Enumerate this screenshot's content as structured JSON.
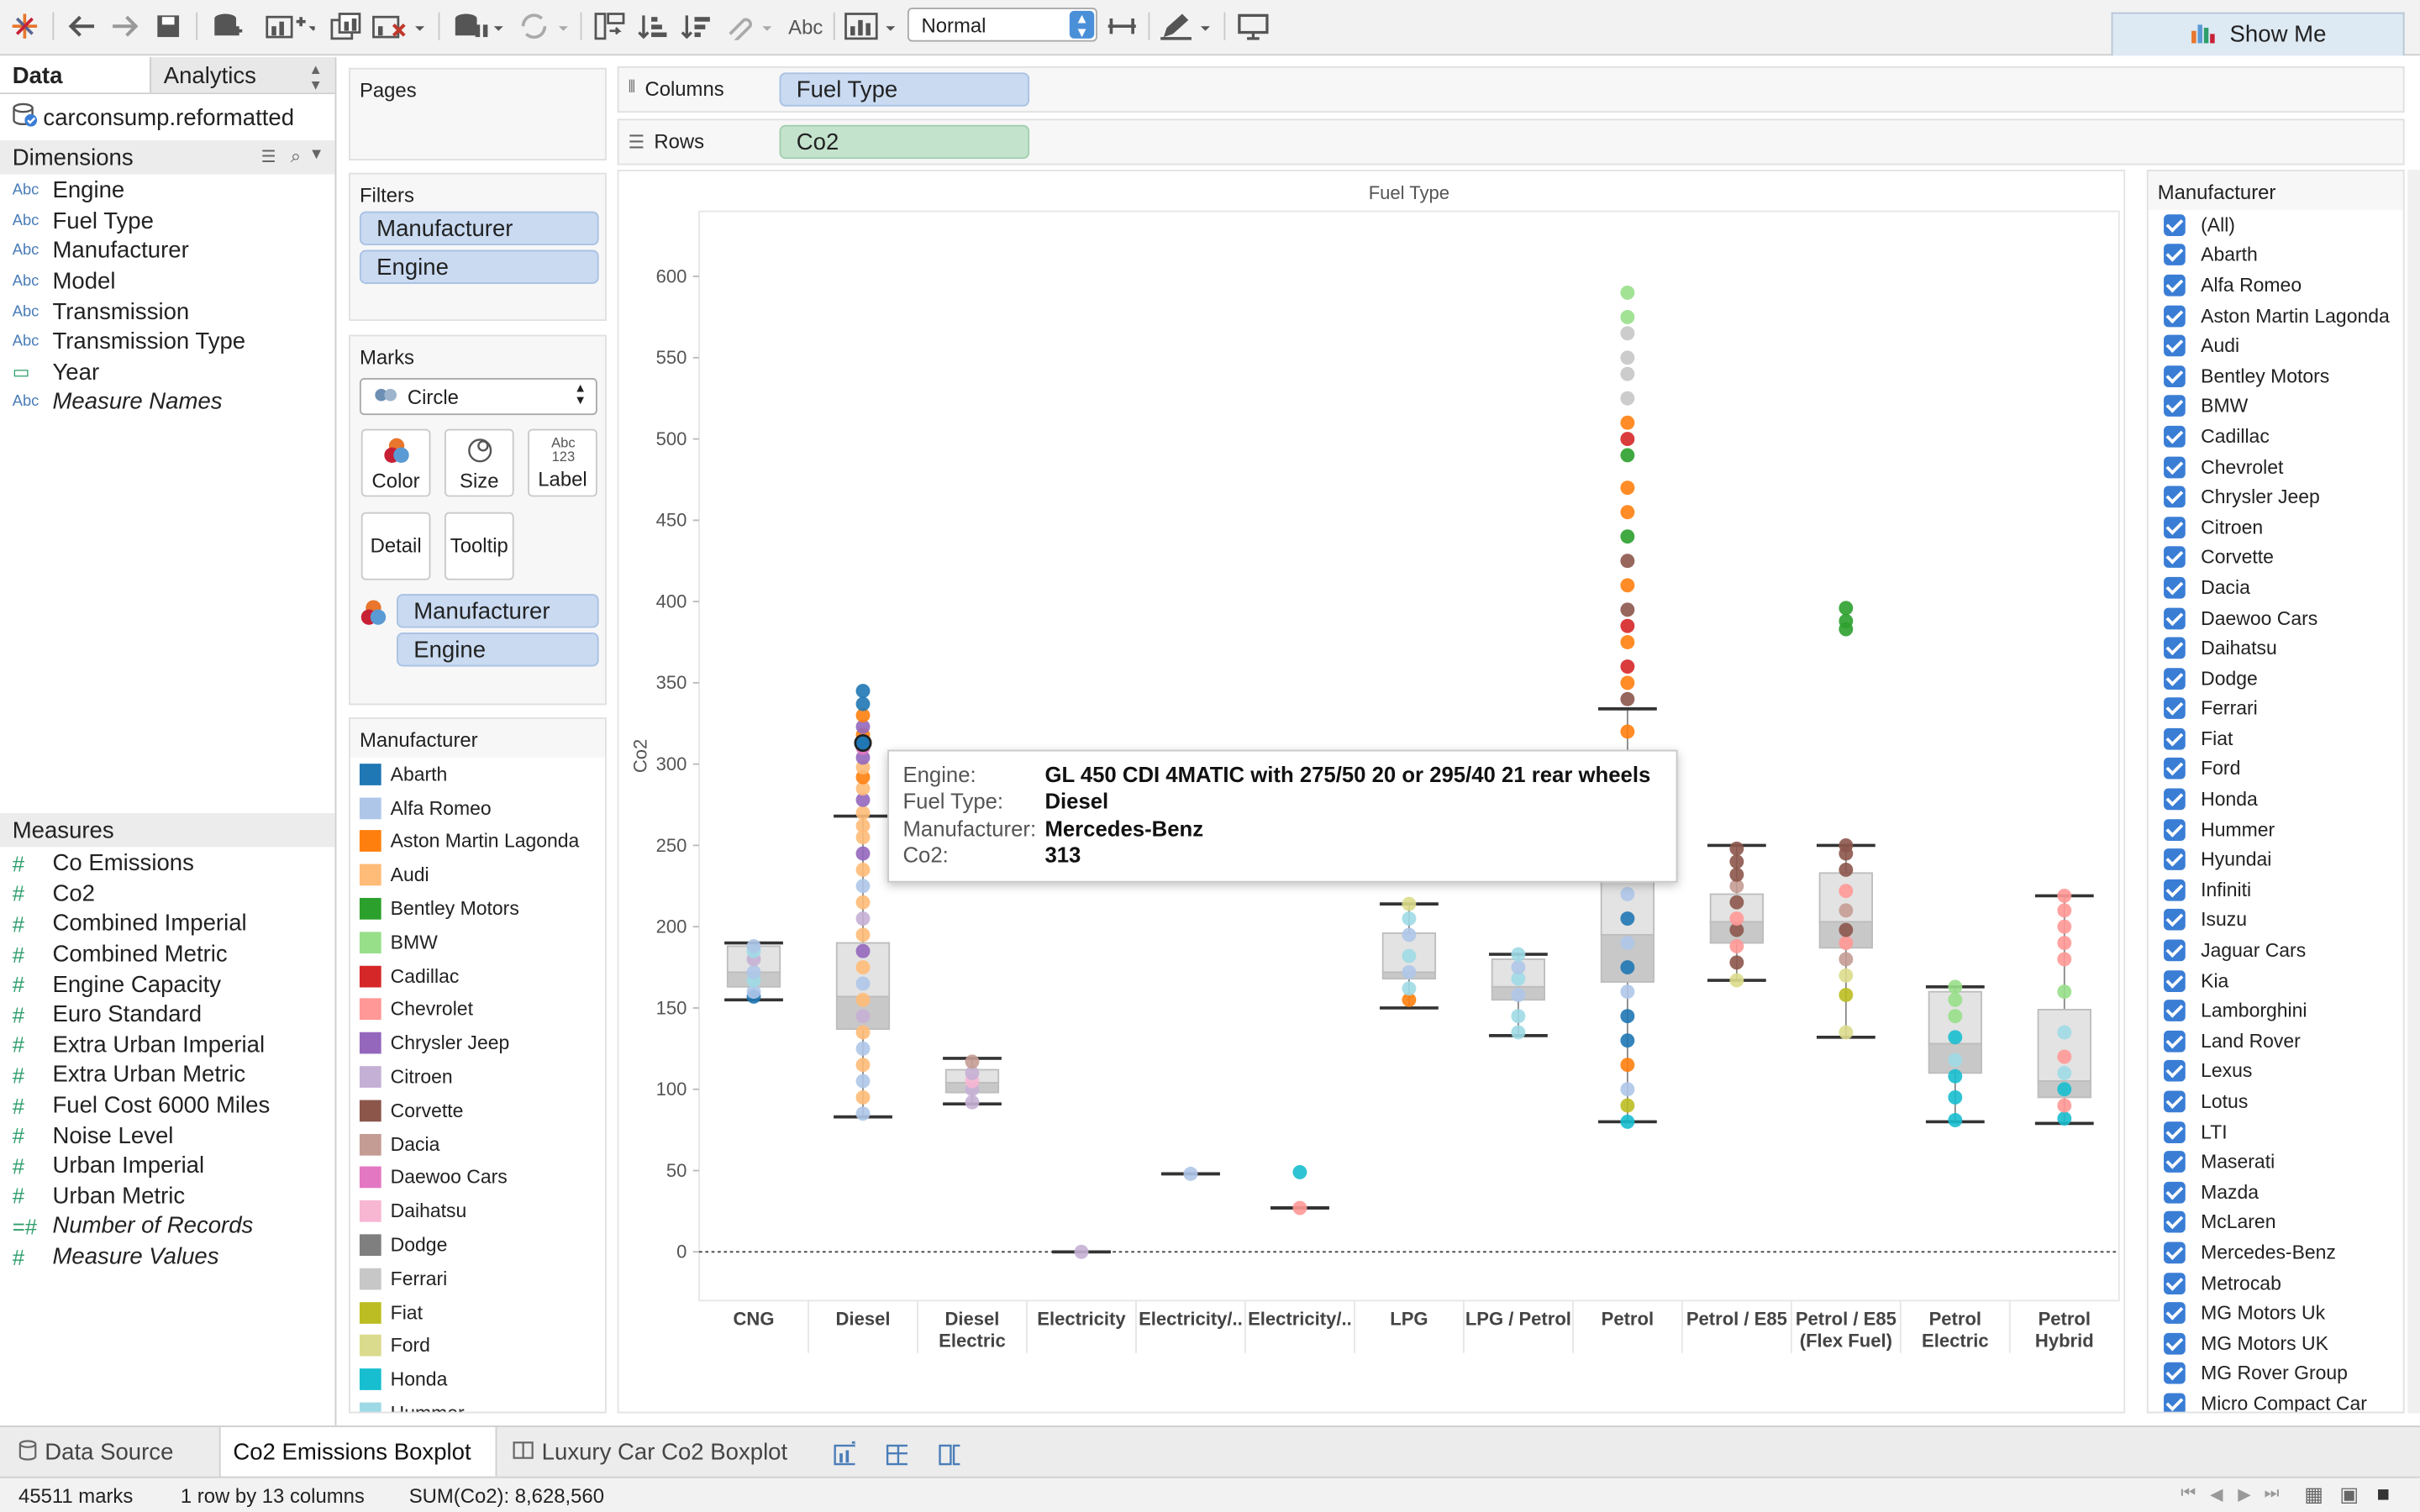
{
  "toolbar": {
    "fit_value": "Normal",
    "text_tool": "Abc",
    "show_me": "Show Me"
  },
  "left_tabs": {
    "data": "Data",
    "analytics": "Analytics"
  },
  "datasource": "carconsump.reformatted",
  "dimensions": {
    "header": "Dimensions",
    "items": [
      {
        "label": "Engine",
        "type": "Abc",
        "italic": false
      },
      {
        "label": "Fuel Type",
        "type": "Abc",
        "italic": false
      },
      {
        "label": "Manufacturer",
        "type": "Abc",
        "italic": false
      },
      {
        "label": "Model",
        "type": "Abc",
        "italic": false
      },
      {
        "label": "Transmission",
        "type": "Abc",
        "italic": false
      },
      {
        "label": "Transmission Type",
        "type": "Abc",
        "italic": false
      },
      {
        "label": "Year",
        "type": "calendar",
        "italic": false
      },
      {
        "label": "Measure Names",
        "type": "Abc",
        "italic": true
      }
    ]
  },
  "measures": {
    "header": "Measures",
    "items": [
      {
        "label": "Co Emissions",
        "italic": false
      },
      {
        "label": "Co2",
        "italic": false
      },
      {
        "label": "Combined Imperial",
        "italic": false
      },
      {
        "label": "Combined Metric",
        "italic": false
      },
      {
        "label": "Engine Capacity",
        "italic": false
      },
      {
        "label": "Euro Standard",
        "italic": false
      },
      {
        "label": "Extra Urban Imperial",
        "italic": false
      },
      {
        "label": "Extra Urban Metric",
        "italic": false
      },
      {
        "label": "Fuel Cost 6000 Miles",
        "italic": false
      },
      {
        "label": "Noise Level",
        "italic": false
      },
      {
        "label": "Urban Imperial",
        "italic": false
      },
      {
        "label": "Urban Metric",
        "italic": false
      },
      {
        "label": "Number of Records",
        "italic": true
      },
      {
        "label": "Measure Values",
        "italic": true
      }
    ]
  },
  "pages": {
    "header": "Pages"
  },
  "filters": {
    "header": "Filters",
    "pills": [
      "Manufacturer",
      "Engine"
    ]
  },
  "marks": {
    "header": "Marks",
    "type": "Circle",
    "buttons": [
      "Color",
      "Size",
      "Label",
      "Detail",
      "Tooltip"
    ],
    "label_icon_text": "Abc 123",
    "pills": [
      "Manufacturer",
      "Engine"
    ]
  },
  "shelves": {
    "columns_label": "Columns",
    "columns_pill": "Fuel Type",
    "rows_label": "Rows",
    "rows_pill": "Co2"
  },
  "legend": {
    "header": "Manufacturer",
    "items": [
      {
        "label": "Abarth",
        "color": "#1f77b4"
      },
      {
        "label": "Alfa Romeo",
        "color": "#aec7e8"
      },
      {
        "label": "Aston Martin Lagonda",
        "color": "#ff7f0e"
      },
      {
        "label": "Audi",
        "color": "#ffbb78"
      },
      {
        "label": "Bentley Motors",
        "color": "#2ca02c"
      },
      {
        "label": "BMW",
        "color": "#98df8a"
      },
      {
        "label": "Cadillac",
        "color": "#d62728"
      },
      {
        "label": "Chevrolet",
        "color": "#ff9896"
      },
      {
        "label": "Chrysler Jeep",
        "color": "#9467bd"
      },
      {
        "label": "Citroen",
        "color": "#c5b0d5"
      },
      {
        "label": "Corvette",
        "color": "#8c564b"
      },
      {
        "label": "Dacia",
        "color": "#c49c94"
      },
      {
        "label": "Daewoo Cars",
        "color": "#e377c2"
      },
      {
        "label": "Daihatsu",
        "color": "#f7b6d2"
      },
      {
        "label": "Dodge",
        "color": "#7f7f7f"
      },
      {
        "label": "Ferrari",
        "color": "#c7c7c7"
      },
      {
        "label": "Fiat",
        "color": "#bcbd22"
      },
      {
        "label": "Ford",
        "color": "#dbdb8d"
      },
      {
        "label": "Honda",
        "color": "#17becf"
      },
      {
        "label": "Hummer",
        "color": "#9edae5"
      }
    ]
  },
  "manufacturer_filter": {
    "header": "Manufacturer",
    "items": [
      "(All)",
      "Abarth",
      "Alfa Romeo",
      "Aston Martin Lagonda",
      "Audi",
      "Bentley Motors",
      "BMW",
      "Cadillac",
      "Chevrolet",
      "Chrysler Jeep",
      "Citroen",
      "Corvette",
      "Dacia",
      "Daewoo Cars",
      "Daihatsu",
      "Dodge",
      "Ferrari",
      "Fiat",
      "Ford",
      "Honda",
      "Hummer",
      "Hyundai",
      "Infiniti",
      "Isuzu",
      "Jaguar Cars",
      "Kia",
      "Lamborghini",
      "Land Rover",
      "Lexus",
      "Lotus",
      "LTI",
      "Maserati",
      "Mazda",
      "McLaren",
      "Mercedes-Benz",
      "Metrocab",
      "MG Motors Uk",
      "MG Motors UK",
      "MG Rover Group",
      "Micro Compact Car"
    ]
  },
  "tooltip": {
    "rows": [
      {
        "key": "Engine:",
        "value": "GL 450 CDI 4MATIC with 275/50 20 or 295/40 21 rear wheels"
      },
      {
        "key": "Fuel Type:",
        "value": "Diesel"
      },
      {
        "key": "Manufacturer:",
        "value": "Mercedes-Benz"
      },
      {
        "key": "Co2:",
        "value": "313"
      }
    ]
  },
  "chart_data": {
    "type": "boxplot",
    "title": "Fuel Type",
    "ylabel": "Co2",
    "ylim": [
      -30,
      640
    ],
    "yticks": [
      0,
      50,
      100,
      150,
      200,
      250,
      300,
      350,
      400,
      450,
      500,
      550,
      600
    ],
    "reference_line": 0,
    "categories": [
      "CNG",
      "Diesel",
      "Diesel\nElectric",
      "Electricity",
      "Electricity/..",
      "Electricity/..",
      "LPG",
      "LPG / Petrol",
      "Petrol",
      "Petrol / E85",
      "Petrol / E85\n(Flex Fuel)",
      "Petrol\nElectric",
      "Petrol\nHybrid"
    ],
    "boxes": [
      {
        "whisker_low": 155,
        "q1": 163,
        "median": 172,
        "q3": 188,
        "whisker_high": 190
      },
      {
        "whisker_low": 83,
        "q1": 137,
        "median": 157,
        "q3": 190,
        "whisker_high": 268
      },
      {
        "whisker_low": 91,
        "q1": 98,
        "median": 104,
        "q3": 112,
        "whisker_high": 119
      },
      {
        "whisker_low": 0,
        "q1": 0,
        "median": 0,
        "q3": 0,
        "whisker_high": 0
      },
      {
        "whisker_low": 48,
        "q1": 48,
        "median": 48,
        "q3": 48,
        "whisker_high": 48
      },
      {
        "whisker_low": 27,
        "q1": 27,
        "median": 27,
        "q3": 27,
        "whisker_high": 27
      },
      {
        "whisker_low": 150,
        "q1": 168,
        "median": 172,
        "q3": 196,
        "whisker_high": 214
      },
      {
        "whisker_low": 133,
        "q1": 155,
        "median": 163,
        "q3": 180,
        "whisker_high": 183
      },
      {
        "whisker_low": 80,
        "q1": 166,
        "median": 195,
        "q3": 233,
        "whisker_high": 334
      },
      {
        "whisker_low": 167,
        "q1": 190,
        "median": 203,
        "q3": 220,
        "whisker_high": 250
      },
      {
        "whisker_low": 132,
        "q1": 187,
        "median": 203,
        "q3": 233,
        "whisker_high": 250
      },
      {
        "whisker_low": 80,
        "q1": 110,
        "median": 128,
        "q3": 160,
        "whisker_high": 163
      },
      {
        "whisker_low": 79,
        "q1": 95,
        "median": 105,
        "q3": 149,
        "whisker_high": 219
      }
    ],
    "points": [
      {
        "cat": 0,
        "ys": [
          157,
          160,
          167,
          172,
          180,
          185,
          188
        ],
        "colors": [
          "#1f77b4",
          "#aec7e8",
          "#9edae5",
          "#aec7e8",
          "#c5b0d5",
          "#9edae5",
          "#aec7e8"
        ]
      },
      {
        "cat": 1,
        "ys": [
          85,
          95,
          105,
          115,
          125,
          135,
          145,
          155,
          165,
          175,
          185,
          195,
          205,
          215,
          225,
          235,
          245,
          255,
          262,
          270,
          278,
          285,
          292,
          298,
          304,
          310,
          313,
          318,
          323,
          330,
          337,
          345
        ],
        "colors": [
          "#aec7e8",
          "#ffbb78",
          "#aec7e8",
          "#ffbb78",
          "#aec7e8",
          "#ffbb78",
          "#c5b0d5",
          "#ffbb78",
          "#aec7e8",
          "#ffbb78",
          "#9467bd",
          "#ffbb78",
          "#c5b0d5",
          "#ffbb78",
          "#aec7e8",
          "#ffbb78",
          "#9467bd",
          "#ffbb78",
          "#ffbb78",
          "#ffbb78",
          "#9467bd",
          "#ffbb78",
          "#ff7f0e",
          "#ffbb78",
          "#9467bd",
          "#e377c2",
          "#1f77b4",
          "#ff7f0e",
          "#9467bd",
          "#ff7f0e",
          "#1f77b4",
          "#1f77b4"
        ]
      },
      {
        "cat": 2,
        "ys": [
          92,
          100,
          105,
          110,
          117
        ],
        "colors": [
          "#c5b0d5",
          "#c5b0d5",
          "#f7b6d2",
          "#c5b0d5",
          "#c49c94"
        ]
      },
      {
        "cat": 3,
        "ys": [
          0
        ],
        "colors": [
          "#c5b0d5"
        ]
      },
      {
        "cat": 4,
        "ys": [
          48
        ],
        "colors": [
          "#aec7e8"
        ]
      },
      {
        "cat": 5,
        "ys": [
          27,
          49
        ],
        "colors": [
          "#ff9896",
          "#17becf"
        ]
      },
      {
        "cat": 6,
        "ys": [
          155,
          162,
          172,
          182,
          195,
          205,
          214
        ],
        "colors": [
          "#ff7f0e",
          "#9edae5",
          "#aec7e8",
          "#9edae5",
          "#aec7e8",
          "#9edae5",
          "#dbdb8d"
        ]
      },
      {
        "cat": 7,
        "ys": [
          135,
          145,
          158,
          168,
          175,
          183
        ],
        "colors": [
          "#9edae5",
          "#9edae5",
          "#aec7e8",
          "#9edae5",
          "#aec7e8",
          "#9edae5"
        ]
      },
      {
        "cat": 8,
        "ys": [
          80,
          90,
          100,
          115,
          130,
          145,
          160,
          175,
          190,
          205,
          220,
          240,
          260,
          280,
          300,
          320,
          340,
          350,
          360,
          375,
          385,
          395,
          410,
          425,
          440,
          455,
          470,
          490,
          500,
          510,
          525,
          540,
          550,
          565,
          575,
          590
        ],
        "colors": [
          "#17becf",
          "#bcbd22",
          "#aec7e8",
          "#ff7f0e",
          "#1f77b4",
          "#1f77b4",
          "#aec7e8",
          "#1f77b4",
          "#aec7e8",
          "#1f77b4",
          "#aec7e8",
          "#ff7f0e",
          "#ff7f0e",
          "#ff7f0e",
          "#ffbb78",
          "#ff7f0e",
          "#8c564b",
          "#ff7f0e",
          "#d62728",
          "#ff7f0e",
          "#d62728",
          "#8c564b",
          "#ff7f0e",
          "#8c564b",
          "#2ca02c",
          "#ff7f0e",
          "#ff7f0e",
          "#2ca02c",
          "#d62728",
          "#ff7f0e",
          "#c7c7c7",
          "#c7c7c7",
          "#c7c7c7",
          "#c7c7c7",
          "#98df8a",
          "#98df8a"
        ]
      },
      {
        "cat": 9,
        "ys": [
          167,
          178,
          188,
          198,
          205,
          215,
          225,
          232,
          240,
          248
        ],
        "colors": [
          "#dbdb8d",
          "#8c564b",
          "#ff9896",
          "#8c564b",
          "#ff9896",
          "#8c564b",
          "#c49c94",
          "#8c564b",
          "#8c564b",
          "#8c564b"
        ]
      },
      {
        "cat": 10,
        "ys": [
          135,
          158,
          170,
          180,
          190,
          198,
          210,
          222,
          235,
          245,
          250,
          383,
          388,
          396
        ],
        "colors": [
          "#dbdb8d",
          "#bcbd22",
          "#dbdb8d",
          "#c49c94",
          "#ff9896",
          "#8c564b",
          "#c49c94",
          "#ff9896",
          "#8c564b",
          "#8c564b",
          "#8c564b",
          "#2ca02c",
          "#2ca02c",
          "#2ca02c"
        ]
      },
      {
        "cat": 11,
        "ys": [
          81,
          95,
          108,
          118,
          132,
          145,
          155,
          163
        ],
        "colors": [
          "#17becf",
          "#17becf",
          "#17becf",
          "#9edae5",
          "#17becf",
          "#98df8a",
          "#98df8a",
          "#98df8a"
        ]
      },
      {
        "cat": 12,
        "ys": [
          82,
          90,
          100,
          110,
          120,
          135,
          160,
          180,
          190,
          200,
          210,
          219
        ],
        "colors": [
          "#17becf",
          "#ff9896",
          "#17becf",
          "#9edae5",
          "#ff9896",
          "#9edae5",
          "#98df8a",
          "#ff9896",
          "#ff9896",
          "#ff9896",
          "#ff9896",
          "#ff9896"
        ]
      }
    ]
  },
  "bottom_tabs": {
    "data_source": "Data Source",
    "active": "Co2 Emissions Boxplot",
    "other": "Luxury Car Co2 Boxplot"
  },
  "status": {
    "marks": "45511 marks",
    "dims": "1 row by 13 columns",
    "sum": "SUM(Co2): 8,628,560"
  }
}
